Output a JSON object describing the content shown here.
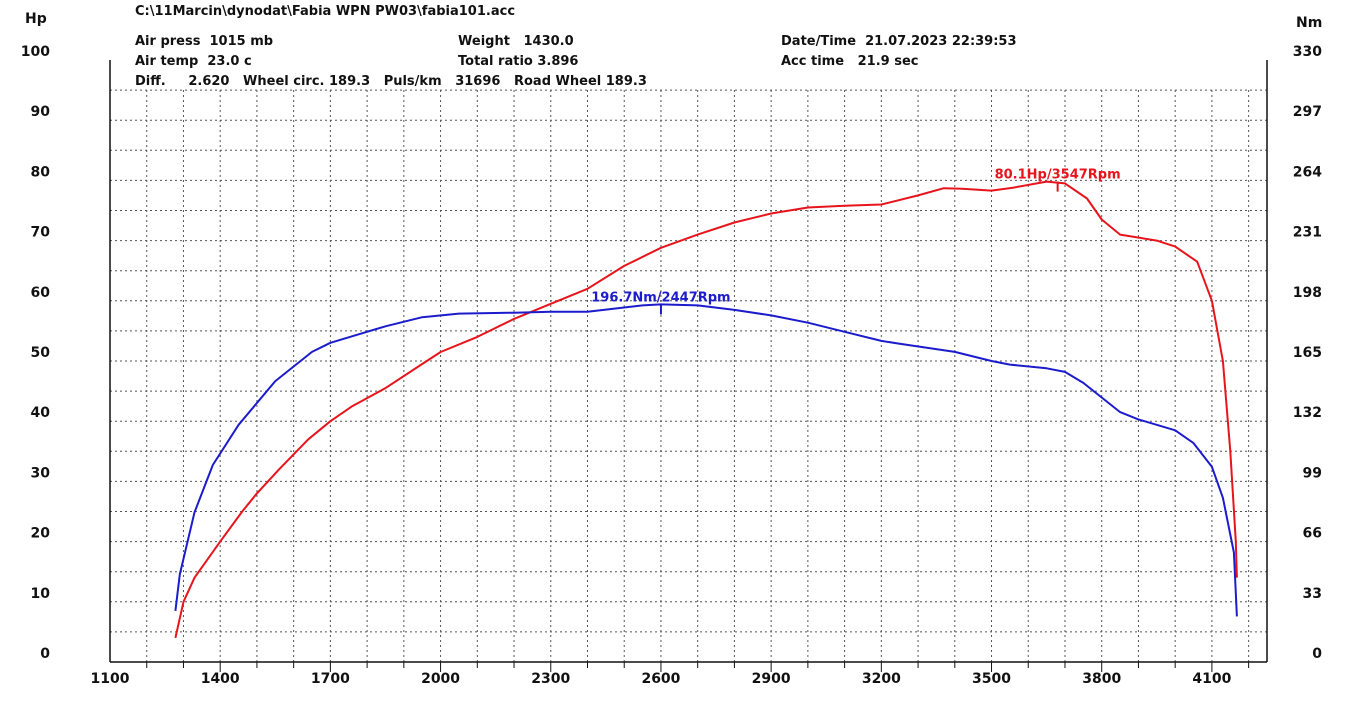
{
  "header": {
    "file": "C:\\11Marcin\\dynodat\\Fabia WPN PW03\\fabia101.acc",
    "air_press": "Air press  1015 mb",
    "air_temp": "Air temp  23.0 c",
    "diff_line": "Diff.     2.620   Wheel circ. 189.3   Puls/km   31696   Road Wheel 189.3",
    "weight": "Weight   1430.0",
    "total_ratio": "Total ratio 3.896",
    "datetime": "Date/Time  21.07.2023 22:39:53",
    "acc_time": "Acc time   21.9 sec"
  },
  "chart_data": {
    "type": "line",
    "title": "",
    "xlabel": "",
    "xlim": [
      1100,
      4250
    ],
    "x_ticks": [
      "1100",
      "1400",
      "1700",
      "2000",
      "2300",
      "2600",
      "2900",
      "3200",
      "3500",
      "3800",
      "4100"
    ],
    "y_left": {
      "label": "Hp",
      "range": [
        0,
        100
      ],
      "ticks": [
        "0",
        "10",
        "20",
        "30",
        "40",
        "50",
        "60",
        "70",
        "80",
        "90",
        "100"
      ]
    },
    "y_right": {
      "label": "Nm",
      "range": [
        0,
        330
      ],
      "ticks": [
        "0",
        "33",
        "66",
        "99",
        "132",
        "165",
        "198",
        "231",
        "264",
        "297",
        "330"
      ]
    },
    "grid": true,
    "series": [
      {
        "name": "Hp",
        "axis": "left",
        "color": "#e8141c",
        "points": [
          [
            1278,
            4
          ],
          [
            1300,
            10
          ],
          [
            1330,
            14
          ],
          [
            1400,
            20
          ],
          [
            1460,
            25
          ],
          [
            1500,
            28
          ],
          [
            1560,
            32
          ],
          [
            1640,
            37
          ],
          [
            1700,
            40
          ],
          [
            1760,
            42.5
          ],
          [
            1850,
            45.5
          ],
          [
            1950,
            49.5
          ],
          [
            2000,
            51.5
          ],
          [
            2100,
            54
          ],
          [
            2200,
            57
          ],
          [
            2300,
            59.5
          ],
          [
            2400,
            62
          ],
          [
            2500,
            65.8
          ],
          [
            2600,
            68.8
          ],
          [
            2700,
            71
          ],
          [
            2800,
            73
          ],
          [
            2900,
            74.5
          ],
          [
            3000,
            75.5
          ],
          [
            3100,
            75.8
          ],
          [
            3200,
            76
          ],
          [
            3300,
            77.5
          ],
          [
            3370,
            78.7
          ],
          [
            3420,
            78.6
          ],
          [
            3500,
            78.3
          ],
          [
            3560,
            78.8
          ],
          [
            3650,
            79.8
          ],
          [
            3700,
            79.5
          ],
          [
            3760,
            77
          ],
          [
            3800,
            73.5
          ],
          [
            3850,
            71
          ],
          [
            3950,
            70
          ],
          [
            4000,
            69
          ],
          [
            4060,
            66.5
          ],
          [
            4100,
            60
          ],
          [
            4130,
            50
          ],
          [
            4150,
            35
          ],
          [
            4165,
            20
          ],
          [
            4168,
            14
          ]
        ]
      },
      {
        "name": "Nm",
        "axis": "right",
        "color": "#1c1ccc",
        "points": [
          [
            1278,
            28
          ],
          [
            1290,
            48
          ],
          [
            1330,
            82
          ],
          [
            1380,
            108
          ],
          [
            1450,
            130
          ],
          [
            1550,
            154
          ],
          [
            1650,
            170
          ],
          [
            1700,
            175
          ],
          [
            1750,
            178
          ],
          [
            1850,
            184
          ],
          [
            1950,
            189
          ],
          [
            2050,
            191
          ],
          [
            2200,
            191.5
          ],
          [
            2300,
            192
          ],
          [
            2400,
            192
          ],
          [
            2500,
            194.3
          ],
          [
            2550,
            195.5
          ],
          [
            2600,
            196
          ],
          [
            2700,
            195.5
          ],
          [
            2800,
            193
          ],
          [
            2900,
            190
          ],
          [
            3000,
            186
          ],
          [
            3100,
            181
          ],
          [
            3200,
            176
          ],
          [
            3250,
            174.5
          ],
          [
            3400,
            170
          ],
          [
            3500,
            165
          ],
          [
            3550,
            163
          ],
          [
            3650,
            161
          ],
          [
            3700,
            159
          ],
          [
            3750,
            153
          ],
          [
            3800,
            145
          ],
          [
            3850,
            137
          ],
          [
            3900,
            133
          ],
          [
            4000,
            127
          ],
          [
            4050,
            120
          ],
          [
            4100,
            107
          ],
          [
            4130,
            90
          ],
          [
            4160,
            60
          ],
          [
            4168,
            25
          ]
        ]
      }
    ],
    "annotations": [
      {
        "series": "Hp",
        "text": "80.1Hp/3547Rpm",
        "x": 3680,
        "y": 79.8
      },
      {
        "series": "Nm",
        "text": "196.7Nm/2447Rpm",
        "x": 2600,
        "y": 196
      }
    ]
  }
}
